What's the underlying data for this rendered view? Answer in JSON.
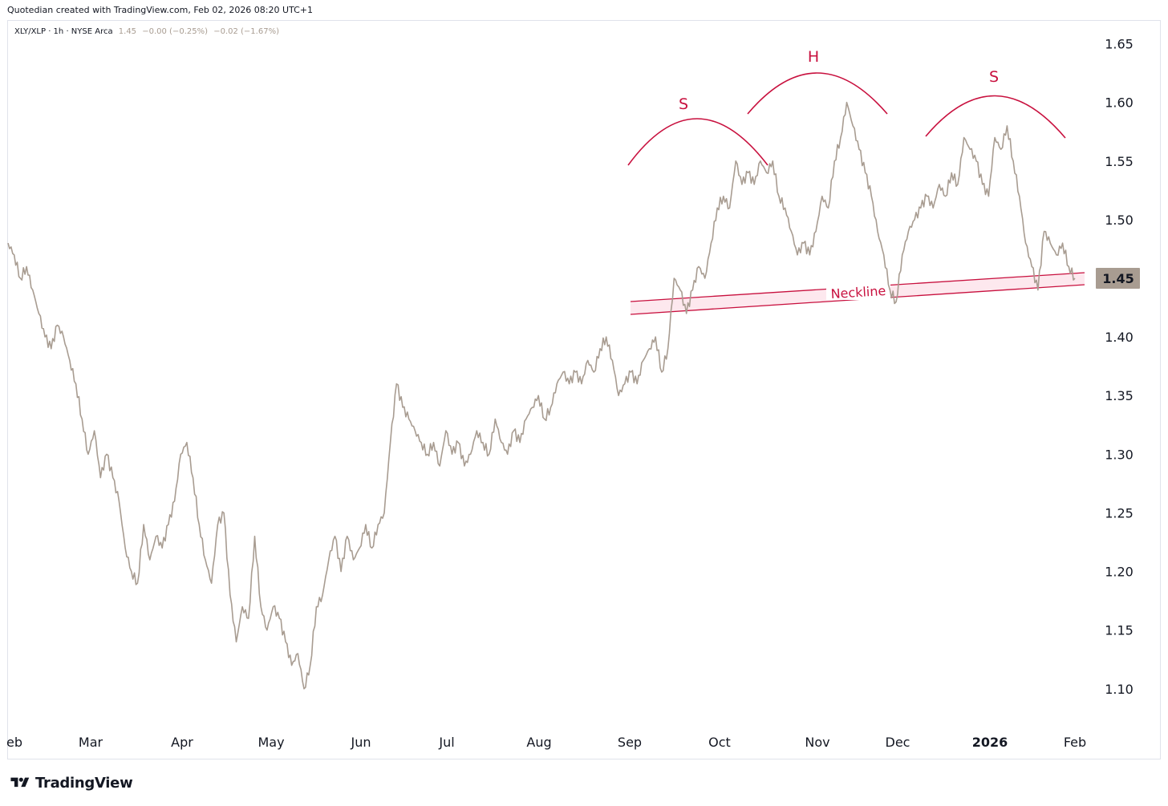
{
  "header": {
    "credit": "Quotedian created with TradingView.com, Feb 02, 2026 08:20 UTC+1"
  },
  "legend": {
    "symbol": "XLY/XLP · 1h · NYSE Arca",
    "last": "1.45",
    "change": "−0.00 (−0.25%)",
    "change2": "−0.02 (−1.67%)"
  },
  "brand": {
    "name": "TradingView"
  },
  "colors": {
    "price_line": "#a89c91",
    "annotation": "#c8103e",
    "neckline_fill": "#fde8ee",
    "axis_text": "#131722",
    "last_price_bg": "#a89c91"
  },
  "chart_data": {
    "type": "line",
    "series": [
      {
        "values": [
          [
            0,
            1.48
          ],
          [
            1,
            1.47
          ],
          [
            2,
            1.45
          ],
          [
            3,
            1.46
          ],
          [
            4,
            1.44
          ],
          [
            5,
            1.42
          ],
          [
            6,
            1.4
          ],
          [
            7,
            1.39
          ],
          [
            8,
            1.41
          ],
          [
            9,
            1.4
          ],
          [
            10,
            1.38
          ],
          [
            11,
            1.36
          ],
          [
            12,
            1.33
          ],
          [
            13,
            1.3
          ],
          [
            14,
            1.32
          ],
          [
            15,
            1.28
          ],
          [
            16,
            1.3
          ],
          [
            17,
            1.28
          ],
          [
            18,
            1.26
          ],
          [
            19,
            1.22
          ],
          [
            20,
            1.2
          ],
          [
            21,
            1.19
          ],
          [
            22,
            1.24
          ],
          [
            23,
            1.21
          ],
          [
            24,
            1.23
          ],
          [
            25,
            1.22
          ],
          [
            26,
            1.24
          ],
          [
            27,
            1.26
          ],
          [
            28,
            1.3
          ],
          [
            29,
            1.31
          ],
          [
            30,
            1.28
          ],
          [
            31,
            1.24
          ],
          [
            32,
            1.21
          ],
          [
            33,
            1.19
          ],
          [
            34,
            1.24
          ],
          [
            35,
            1.25
          ],
          [
            36,
            1.18
          ],
          [
            37,
            1.14
          ],
          [
            38,
            1.17
          ],
          [
            39,
            1.16
          ],
          [
            40,
            1.23
          ],
          [
            41,
            1.17
          ],
          [
            42,
            1.15
          ],
          [
            43,
            1.17
          ],
          [
            44,
            1.16
          ],
          [
            45,
            1.14
          ],
          [
            46,
            1.12
          ],
          [
            47,
            1.13
          ],
          [
            48,
            1.1
          ],
          [
            49,
            1.12
          ],
          [
            50,
            1.17
          ],
          [
            51,
            1.18
          ],
          [
            52,
            1.21
          ],
          [
            53,
            1.23
          ],
          [
            54,
            1.2
          ],
          [
            55,
            1.23
          ],
          [
            56,
            1.21
          ],
          [
            57,
            1.22
          ],
          [
            58,
            1.24
          ],
          [
            59,
            1.22
          ],
          [
            60,
            1.24
          ],
          [
            61,
            1.25
          ],
          [
            62,
            1.31
          ],
          [
            63,
            1.36
          ],
          [
            64,
            1.34
          ],
          [
            65,
            1.33
          ],
          [
            66,
            1.32
          ],
          [
            67,
            1.31
          ],
          [
            68,
            1.3
          ],
          [
            69,
            1.31
          ],
          [
            70,
            1.29
          ],
          [
            71,
            1.32
          ],
          [
            72,
            1.3
          ],
          [
            73,
            1.31
          ],
          [
            74,
            1.29
          ],
          [
            75,
            1.3
          ],
          [
            76,
            1.32
          ],
          [
            77,
            1.31
          ],
          [
            78,
            1.3
          ],
          [
            79,
            1.33
          ],
          [
            80,
            1.31
          ],
          [
            81,
            1.3
          ],
          [
            82,
            1.32
          ],
          [
            83,
            1.31
          ],
          [
            84,
            1.33
          ],
          [
            85,
            1.34
          ],
          [
            86,
            1.35
          ],
          [
            87,
            1.33
          ],
          [
            88,
            1.34
          ],
          [
            89,
            1.36
          ],
          [
            90,
            1.37
          ],
          [
            91,
            1.36
          ],
          [
            92,
            1.37
          ],
          [
            93,
            1.36
          ],
          [
            94,
            1.38
          ],
          [
            95,
            1.37
          ],
          [
            96,
            1.39
          ],
          [
            97,
            1.4
          ],
          [
            98,
            1.38
          ],
          [
            99,
            1.35
          ],
          [
            100,
            1.36
          ],
          [
            101,
            1.37
          ],
          [
            102,
            1.36
          ],
          [
            103,
            1.38
          ],
          [
            104,
            1.39
          ],
          [
            105,
            1.4
          ],
          [
            106,
            1.37
          ],
          [
            107,
            1.39
          ],
          [
            108,
            1.45
          ],
          [
            109,
            1.44
          ],
          [
            110,
            1.42
          ],
          [
            111,
            1.44
          ],
          [
            112,
            1.46
          ],
          [
            113,
            1.45
          ],
          [
            114,
            1.48
          ],
          [
            115,
            1.51
          ],
          [
            116,
            1.52
          ],
          [
            117,
            1.51
          ],
          [
            118,
            1.55
          ],
          [
            119,
            1.53
          ],
          [
            120,
            1.54
          ],
          [
            121,
            1.53
          ],
          [
            122,
            1.55
          ],
          [
            123,
            1.54
          ],
          [
            124,
            1.55
          ],
          [
            125,
            1.52
          ],
          [
            126,
            1.51
          ],
          [
            127,
            1.49
          ],
          [
            128,
            1.47
          ],
          [
            129,
            1.48
          ],
          [
            130,
            1.47
          ],
          [
            131,
            1.49
          ],
          [
            132,
            1.52
          ],
          [
            133,
            1.51
          ],
          [
            134,
            1.55
          ],
          [
            135,
            1.57
          ],
          [
            136,
            1.6
          ],
          [
            137,
            1.58
          ],
          [
            138,
            1.56
          ],
          [
            139,
            1.54
          ],
          [
            140,
            1.52
          ],
          [
            141,
            1.49
          ],
          [
            142,
            1.47
          ],
          [
            143,
            1.44
          ],
          [
            144,
            1.43
          ],
          [
            145,
            1.47
          ],
          [
            146,
            1.49
          ],
          [
            147,
            1.5
          ],
          [
            148,
            1.51
          ],
          [
            149,
            1.52
          ],
          [
            150,
            1.51
          ],
          [
            151,
            1.53
          ],
          [
            152,
            1.52
          ],
          [
            153,
            1.54
          ],
          [
            154,
            1.53
          ],
          [
            155,
            1.57
          ],
          [
            156,
            1.56
          ],
          [
            157,
            1.55
          ],
          [
            158,
            1.53
          ],
          [
            159,
            1.52
          ],
          [
            160,
            1.57
          ],
          [
            161,
            1.56
          ],
          [
            162,
            1.58
          ],
          [
            163,
            1.55
          ],
          [
            164,
            1.52
          ],
          [
            165,
            1.48
          ],
          [
            166,
            1.46
          ],
          [
            167,
            1.44
          ],
          [
            168,
            1.49
          ],
          [
            169,
            1.48
          ],
          [
            170,
            1.47
          ],
          [
            171,
            1.48
          ],
          [
            172,
            1.46
          ],
          [
            173,
            1.45
          ]
        ]
      }
    ],
    "x_ticks": [
      "eb",
      "Mar",
      "Apr",
      "May",
      "Jun",
      "Jul",
      "Aug",
      "Sep",
      "Oct",
      "Nov",
      "Dec",
      "2026",
      "Feb"
    ],
    "y_ticks": [
      "1.65",
      "1.60",
      "1.55",
      "1.50",
      "1.45",
      "1.40",
      "1.35",
      "1.30",
      "1.25",
      "1.20",
      "1.15",
      "1.10"
    ],
    "ylim": [
      1.065,
      1.675
    ],
    "last_price_label": "1.45",
    "annotations": {
      "left_shoulder": "S",
      "head": "H",
      "right_shoulder": "S",
      "neckline": "Neckline"
    },
    "grid": false
  }
}
